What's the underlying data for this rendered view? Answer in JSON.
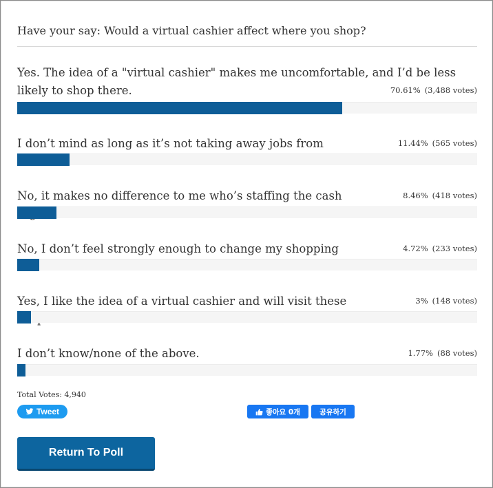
{
  "poll": {
    "question": "Have your say: Would a virtual cashier affect where you shop?",
    "answers": [
      {
        "text": "Yes. The idea of a \"virtual cashier\" makes me uncomfortable, and I’d be less likely to shop there.",
        "percent": "70.61%",
        "votes": "(3,488 votes)",
        "share": 70.61
      },
      {
        "text": "I don’t mind as long as it’s not taking away jobs from Canadians.",
        "percent": "11.44%",
        "votes": "(565 votes)",
        "share": 11.44
      },
      {
        "text": "No, it makes no difference to me who’s staffing the cash register.",
        "percent": "8.46%",
        "votes": "(418 votes)",
        "share": 8.46
      },
      {
        "text": "No, I don’t feel strongly enough to change my shopping habits.",
        "percent": "4.72%",
        "votes": "(233 votes)",
        "share": 4.72
      },
      {
        "text": "Yes, I like the idea of a virtual cashier and will visit these shops more.",
        "percent": "3%",
        "votes": "(148 votes)",
        "share": 3
      },
      {
        "text": "I don’t know/none of the above.",
        "percent": "1.77%",
        "votes": "(88 votes)",
        "share": 1.77
      }
    ],
    "total_votes": "Total Votes: 4,940",
    "bar_color": "#0e5d97"
  },
  "social": {
    "tweet_label": "Tweet",
    "tweet_icon": "twitter-bird-icon",
    "like_label": "좋아요 0개",
    "like_icon": "thumbs-up-icon",
    "share_label": "공유하기"
  },
  "actions": {
    "return_label": "Return To Poll"
  }
}
